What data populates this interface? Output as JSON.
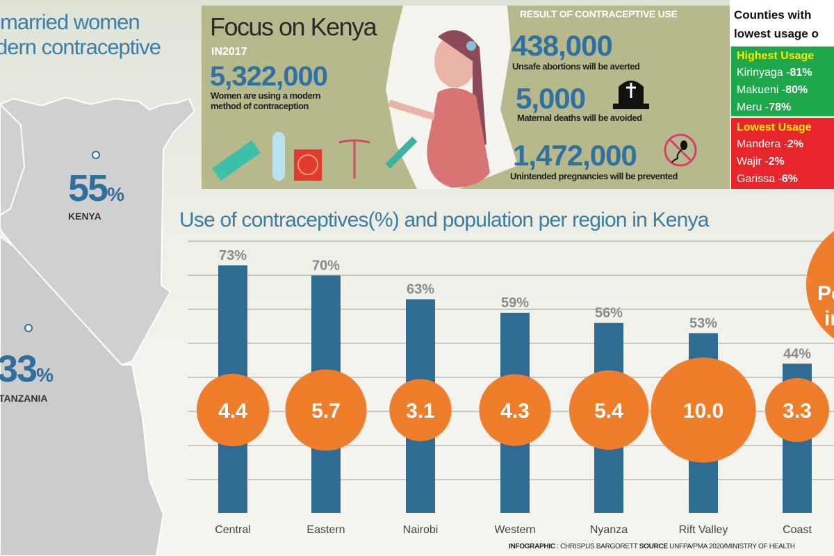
{
  "left": {
    "title_line1": "married women",
    "title_line2": "dern contraceptive",
    "kenya": {
      "value": "55",
      "unit": "%",
      "label": "KENYA"
    },
    "tanzania": {
      "value": "33",
      "unit": "%",
      "label": "TANZANIA"
    }
  },
  "focus": {
    "title": "Focus on Kenya",
    "year": "IN2017",
    "number": "5,322,000",
    "caption_line1": "Women are using a modern",
    "caption_line2": "method of contraception"
  },
  "results": {
    "title": "RESULT OF CONTRACEPTIVE USE",
    "items": [
      {
        "number": "438,000",
        "caption": "Unsafe abortions will be averted",
        "icon": "none"
      },
      {
        "number": "5,000",
        "caption": "Maternal deaths will be avoided",
        "icon": "tombstone-icon"
      },
      {
        "number": "1,472,000",
        "caption": "Unintended pregnancies will be prevented",
        "icon": "no-sperm-icon"
      }
    ]
  },
  "counties": {
    "title_line1": "Counties with",
    "title_line2": "lowest usage o",
    "highest": {
      "heading": "Highest Usage",
      "items": [
        {
          "name": "Kirinyaga -",
          "value": "81%"
        },
        {
          "name": "Makueni -",
          "value": "80%"
        },
        {
          "name": "Meru -",
          "value": "78%"
        }
      ]
    },
    "lowest": {
      "heading": "Lowest Usage",
      "items": [
        {
          "name": "Mandera -",
          "value": "2%"
        },
        {
          "name": "Wajir -",
          "value": "2%"
        },
        {
          "name": "Garissa -",
          "value": "6%"
        }
      ]
    }
  },
  "colors": {
    "bar": "#2f6b93",
    "bubble": "#ee7d2c",
    "green": "#1ea84b",
    "red": "#e7262b",
    "panel": "#b7b98c"
  },
  "chart_data": {
    "type": "bar",
    "title": "Use of contraceptives(%) and population per region in Kenya",
    "categories": [
      "Central",
      "Eastern",
      "Nairobi",
      "Western",
      "Nyanza",
      "Rift Valley",
      "Coast"
    ],
    "series": [
      {
        "name": "Contraceptive use (%)",
        "values": [
          73,
          70,
          63,
          59,
          56,
          53,
          44
        ],
        "labels": [
          "73%",
          "70%",
          "63%",
          "59%",
          "56%",
          "53%",
          "44%"
        ]
      },
      {
        "name": "Population (millions)",
        "values": [
          4.4,
          5.7,
          3.1,
          4.3,
          5.4,
          10.0,
          3.3
        ],
        "labels": [
          "4.4",
          "5.7",
          "3.1",
          "4.3",
          "5.4",
          "10.0",
          "3.3"
        ]
      }
    ],
    "legend_bubble": "Population in millions",
    "ylim": [
      0,
      100
    ],
    "grid": true
  },
  "credit": {
    "label1": "INFOGRAPHIC",
    "text1": " : CHRISPUS BARGORETT ",
    "label2": "SOURCE",
    "text2": " UNFPA/PMA 2020/MINISTRY OF HEALTH"
  }
}
